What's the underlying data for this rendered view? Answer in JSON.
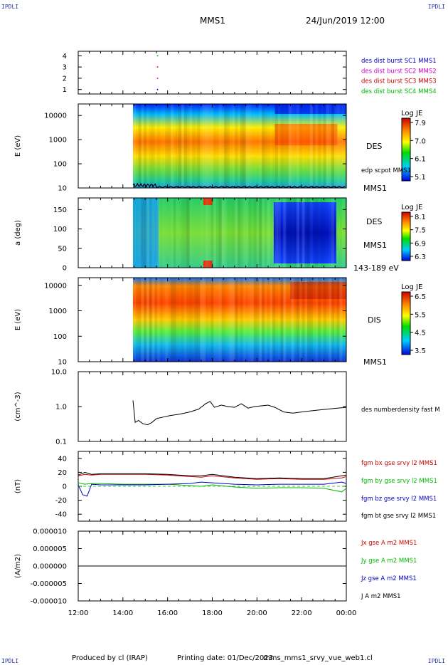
{
  "header": {
    "corner_left_top": "IPDLI",
    "corner_right_top": "IPDLI",
    "corner_left_bottom": "IPDLI",
    "corner_right_bottom": "IPDLI",
    "mission": "MMS1",
    "datetime": "24/Jun/2019 12:00"
  },
  "footer": {
    "produced_by": "Produced by cl (IRAP)",
    "printing_date": "Printing date: 01/Dec/2023",
    "filename": "mms_mms1_srvy_vue_web1.cl"
  },
  "x_axis": {
    "tick_labels": [
      "12:00",
      "14:00",
      "16:00",
      "18:00",
      "20:00",
      "22:00",
      "00:00"
    ],
    "range_hours": [
      12,
      24
    ]
  },
  "colors": {
    "red": "#cc0000",
    "magenta": "#cc00cc",
    "blue": "#0000cc",
    "green": "#00bb00",
    "black": "#000000"
  },
  "chart_data": [
    {
      "type": "scatter",
      "panel": "burst",
      "y_ticks": [
        "4",
        "3",
        "2",
        "1"
      ],
      "ylim": [
        0.6,
        4.4
      ],
      "series": [
        {
          "name": "des dist burst SC1 MMS1",
          "color": "blue",
          "x": [
            15.55
          ],
          "y": [
            1
          ]
        },
        {
          "name": "des dist burst SC2 MMS2",
          "color": "magenta",
          "x": [
            15.55
          ],
          "y": [
            2
          ]
        },
        {
          "name": "des dist burst SC3 MMS3",
          "color": "red",
          "x": [
            15.55
          ],
          "y": [
            3
          ]
        },
        {
          "name": "des dist burst SC4 MMS4",
          "color": "green",
          "x": [
            15.55
          ],
          "y": [
            4
          ]
        }
      ]
    },
    {
      "type": "heatmap",
      "panel": "des_energy",
      "ylabel": "E (eV)",
      "y_scale": "log",
      "ylim": [
        10,
        30000
      ],
      "y_ticks": [
        "10000",
        "1000",
        "100",
        "10"
      ],
      "data_start_hour": 14.45,
      "label_right": "DES",
      "label_right_bottom": "MMS1",
      "overlay_label": "edp scpot MMS1",
      "colorbar": {
        "title": "Log JE",
        "ticks": [
          "7.9",
          "7.0",
          "6.1",
          "5.1"
        ]
      }
    },
    {
      "type": "heatmap",
      "panel": "des_pitch",
      "ylabel": "a (deg)",
      "ylim": [
        0,
        180
      ],
      "y_ticks": [
        "150",
        "100",
        "50",
        "0"
      ],
      "data_start_hour": 14.45,
      "label_right": "DES",
      "label_right_mid": "MMS1",
      "label_right_bottom": "143-189 eV",
      "colorbar": {
        "title": "Log JE",
        "ticks": [
          "8.1",
          "7.5",
          "6.9",
          "6.3"
        ]
      }
    },
    {
      "type": "heatmap",
      "panel": "dis_energy",
      "ylabel": "E (eV)",
      "y_scale": "log",
      "ylim": [
        10,
        20000
      ],
      "y_ticks": [
        "10000",
        "1000",
        "100",
        "10"
      ],
      "data_start_hour": 14.45,
      "label_right": "DIS",
      "label_right_bottom": "MMS1",
      "colorbar": {
        "title": "Log JE",
        "ticks": [
          "6.5",
          "5.5",
          "4.5",
          "3.5"
        ]
      }
    },
    {
      "type": "line",
      "panel": "density",
      "ylabel": "(cm^-3)",
      "y_scale": "log",
      "ylim": [
        0.1,
        10
      ],
      "y_ticks": [
        "10.0",
        "1.0",
        "0.1"
      ],
      "series": [
        {
          "name": "des numberdensity fast M",
          "color": "black",
          "x": [
            14.45,
            14.55,
            14.7,
            14.9,
            15.1,
            15.3,
            15.5,
            15.8,
            16.1,
            16.5,
            17.0,
            17.4,
            17.7,
            17.9,
            18.1,
            18.4,
            18.7,
            19.0,
            19.3,
            19.6,
            19.9,
            20.2,
            20.5,
            20.8,
            21.2,
            21.6,
            22.0,
            22.4,
            22.8,
            23.2,
            23.6,
            24.0
          ],
          "y": [
            1.5,
            0.35,
            0.4,
            0.32,
            0.3,
            0.35,
            0.45,
            0.5,
            0.55,
            0.6,
            0.7,
            0.85,
            1.2,
            1.4,
            0.95,
            1.1,
            1.0,
            0.95,
            1.2,
            0.9,
            1.0,
            1.05,
            1.1,
            0.95,
            0.7,
            0.65,
            0.7,
            0.75,
            0.8,
            0.85,
            0.9,
            0.95
          ]
        }
      ]
    },
    {
      "type": "line",
      "panel": "magnetic_field",
      "ylabel": "(nT)",
      "ylim": [
        -50,
        50
      ],
      "y_ticks": [
        "40",
        "20",
        "0",
        "-20",
        "-40"
      ],
      "series": [
        {
          "name": "fgm bx gse srvy l2 MMS1",
          "color": "red",
          "x": [
            12,
            12.3,
            12.6,
            13,
            14,
            15,
            16,
            17,
            17.5,
            18,
            19,
            20,
            21,
            22,
            23,
            23.8,
            24
          ],
          "y": [
            15,
            17,
            16,
            17,
            17,
            17,
            16,
            14,
            13,
            15,
            12,
            10,
            11,
            10,
            10,
            12,
            14
          ]
        },
        {
          "name": "fgm by gse srvy l2 MMS1",
          "color": "green",
          "x": [
            12,
            12.3,
            12.6,
            13,
            14,
            15,
            16,
            17,
            17.5,
            18,
            19,
            20,
            21,
            22,
            23,
            23.8,
            24
          ],
          "y": [
            5,
            3,
            4,
            4,
            3,
            3,
            3,
            1,
            0,
            2,
            -1,
            -3,
            -2,
            -2,
            -3,
            -8,
            -3
          ]
        },
        {
          "name": "fgm bz gse srvy l2 MMS1",
          "color": "blue",
          "x": [
            12,
            12.2,
            12.4,
            12.6,
            13,
            14,
            15,
            16,
            17,
            17.5,
            18,
            19,
            20,
            21,
            22,
            23,
            23.8,
            24
          ],
          "y": [
            2,
            -12,
            -14,
            3,
            2,
            2,
            2,
            3,
            4,
            6,
            5,
            3,
            2,
            3,
            3,
            3,
            6,
            4
          ]
        },
        {
          "name": "fgm bt gse srvy l2 MMS1",
          "color": "black",
          "x": [
            12,
            12.3,
            12.6,
            13,
            14,
            15,
            16,
            17,
            17.5,
            18,
            19,
            20,
            21,
            22,
            23,
            23.8,
            24
          ],
          "y": [
            16,
            20,
            17,
            18,
            18,
            18,
            17,
            15,
            15,
            17,
            13,
            11,
            12,
            11,
            11,
            15,
            16
          ]
        }
      ]
    },
    {
      "type": "line",
      "panel": "current_density",
      "ylabel": "(A/m2)",
      "ylim": [
        -1e-05,
        1e-05
      ],
      "y_ticks": [
        "0.000010",
        "0.000005",
        "0.000000",
        "-0.000005",
        "-0.000010"
      ],
      "series": [
        {
          "name": "Jx gse A m2 MMS1",
          "color": "red",
          "x": [
            12,
            24
          ],
          "y": [
            0,
            0
          ]
        },
        {
          "name": "Jy gse A m2 MMS1",
          "color": "green",
          "x": [
            12,
            24
          ],
          "y": [
            0,
            0
          ]
        },
        {
          "name": "Jz gse A m2 MMS1",
          "color": "blue",
          "x": [
            12,
            24
          ],
          "y": [
            0,
            0
          ]
        },
        {
          "name": "J A m2 MMS1",
          "color": "black",
          "x": [
            12,
            24
          ],
          "y": [
            0,
            0
          ]
        }
      ]
    }
  ]
}
